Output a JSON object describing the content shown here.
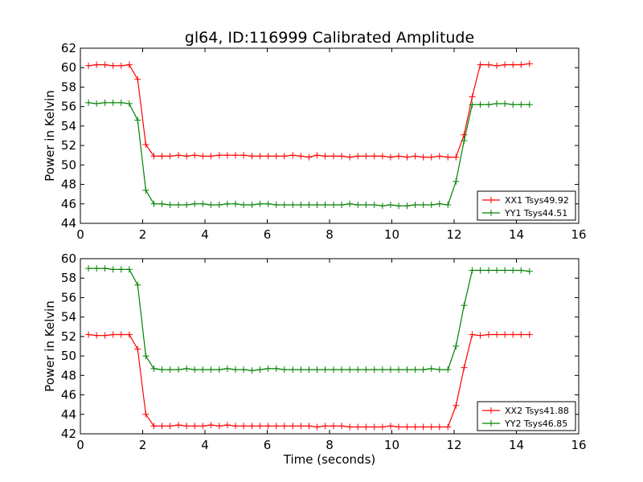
{
  "chart_data": [
    {
      "type": "line",
      "title": "gl64, ID:116999 Calibrated Amplitude",
      "xlabel": "",
      "ylabel": "Power in Kelvin",
      "xlim": [
        0,
        16
      ],
      "ylim": [
        44,
        62
      ],
      "xticks": [
        "0",
        "2",
        "4",
        "6",
        "8",
        "10",
        "12",
        "14",
        "16"
      ],
      "yticks": [
        "44",
        "46",
        "48",
        "50",
        "52",
        "54",
        "56",
        "58",
        "60",
        "62"
      ],
      "grid": false,
      "legend_position": "lower-right",
      "series": [
        {
          "name": "XX1 Tsys49.92",
          "color": "#ff0000",
          "x": [
            0.26,
            0.52,
            0.79,
            1.05,
            1.31,
            1.57,
            1.84,
            2.1,
            2.36,
            2.62,
            2.88,
            3.15,
            3.41,
            3.67,
            3.93,
            4.19,
            4.46,
            4.72,
            4.98,
            5.24,
            5.51,
            5.77,
            6.03,
            6.29,
            6.55,
            6.82,
            7.08,
            7.34,
            7.6,
            7.86,
            8.13,
            8.39,
            8.65,
            8.91,
            9.17,
            9.44,
            9.7,
            9.96,
            10.22,
            10.49,
            10.75,
            11.01,
            11.27,
            11.53,
            11.8,
            12.06,
            12.32,
            12.58,
            12.84,
            13.11,
            13.37,
            13.63,
            13.89,
            14.15,
            14.42
          ],
          "y": [
            60.2,
            60.3,
            60.3,
            60.2,
            60.2,
            60.3,
            58.8,
            52.1,
            50.9,
            50.9,
            50.9,
            51.0,
            50.9,
            51.0,
            50.9,
            50.9,
            51.0,
            51.0,
            51.0,
            51.0,
            50.9,
            50.9,
            50.9,
            50.9,
            50.9,
            51.0,
            50.9,
            50.8,
            51.0,
            50.9,
            50.9,
            50.9,
            50.8,
            50.9,
            50.9,
            50.9,
            50.9,
            50.8,
            50.9,
            50.8,
            50.9,
            50.8,
            50.8,
            50.9,
            50.8,
            50.8,
            53.1,
            57.0,
            60.3,
            60.3,
            60.2,
            60.3,
            60.3,
            60.3,
            60.4
          ]
        },
        {
          "name": "YY1 Tsys44.51",
          "color": "#008000",
          "x": [
            0.26,
            0.52,
            0.79,
            1.05,
            1.31,
            1.57,
            1.84,
            2.1,
            2.36,
            2.62,
            2.88,
            3.15,
            3.41,
            3.67,
            3.93,
            4.19,
            4.46,
            4.72,
            4.98,
            5.24,
            5.51,
            5.77,
            6.03,
            6.29,
            6.55,
            6.82,
            7.08,
            7.34,
            7.6,
            7.86,
            8.13,
            8.39,
            8.65,
            8.91,
            9.17,
            9.44,
            9.7,
            9.96,
            10.22,
            10.49,
            10.75,
            11.01,
            11.27,
            11.53,
            11.8,
            12.06,
            12.32,
            12.58,
            12.84,
            13.11,
            13.37,
            13.63,
            13.89,
            14.15,
            14.42
          ],
          "y": [
            56.4,
            56.3,
            56.4,
            56.4,
            56.4,
            56.3,
            54.6,
            47.4,
            46.0,
            46.0,
            45.9,
            45.9,
            45.9,
            46.0,
            46.0,
            45.9,
            45.9,
            46.0,
            46.0,
            45.9,
            45.9,
            46.0,
            46.0,
            45.9,
            45.9,
            45.9,
            45.9,
            45.9,
            45.9,
            45.9,
            45.9,
            45.9,
            46.0,
            45.9,
            45.9,
            45.9,
            45.8,
            45.9,
            45.8,
            45.8,
            45.9,
            45.9,
            45.9,
            46.0,
            45.9,
            48.3,
            52.5,
            56.2,
            56.2,
            56.2,
            56.3,
            56.3,
            56.2,
            56.2,
            56.2
          ]
        }
      ]
    },
    {
      "type": "line",
      "title": "",
      "xlabel": "Time (seconds)",
      "ylabel": "Power in Kelvin",
      "xlim": [
        0,
        16
      ],
      "ylim": [
        42,
        60
      ],
      "xticks": [
        "0",
        "2",
        "4",
        "6",
        "8",
        "10",
        "12",
        "14",
        "16"
      ],
      "yticks": [
        "42",
        "44",
        "46",
        "48",
        "50",
        "52",
        "54",
        "56",
        "58",
        "60"
      ],
      "grid": false,
      "legend_position": "lower-right",
      "series": [
        {
          "name": "XX2 Tsys41.88",
          "color": "#ff0000",
          "x": [
            0.26,
            0.52,
            0.79,
            1.05,
            1.31,
            1.57,
            1.84,
            2.1,
            2.36,
            2.62,
            2.88,
            3.15,
            3.41,
            3.67,
            3.93,
            4.19,
            4.46,
            4.72,
            4.98,
            5.24,
            5.51,
            5.77,
            6.03,
            6.29,
            6.55,
            6.82,
            7.08,
            7.34,
            7.6,
            7.86,
            8.13,
            8.39,
            8.65,
            8.91,
            9.17,
            9.44,
            9.7,
            9.96,
            10.22,
            10.49,
            10.75,
            11.01,
            11.27,
            11.53,
            11.8,
            12.06,
            12.32,
            12.58,
            12.84,
            13.11,
            13.37,
            13.63,
            13.89,
            14.15,
            14.42
          ],
          "y": [
            52.2,
            52.1,
            52.1,
            52.2,
            52.2,
            52.2,
            50.7,
            44.0,
            42.8,
            42.8,
            42.8,
            42.9,
            42.8,
            42.8,
            42.8,
            42.9,
            42.8,
            42.9,
            42.8,
            42.8,
            42.8,
            42.8,
            42.8,
            42.8,
            42.8,
            42.8,
            42.8,
            42.8,
            42.7,
            42.8,
            42.8,
            42.8,
            42.7,
            42.7,
            42.7,
            42.7,
            42.7,
            42.8,
            42.7,
            42.7,
            42.7,
            42.7,
            42.7,
            42.7,
            42.7,
            44.9,
            48.8,
            52.2,
            52.1,
            52.2,
            52.2,
            52.2,
            52.2,
            52.2,
            52.2
          ]
        },
        {
          "name": "YY2 Tsys46.85",
          "color": "#008000",
          "x": [
            0.26,
            0.52,
            0.79,
            1.05,
            1.31,
            1.57,
            1.84,
            2.1,
            2.36,
            2.62,
            2.88,
            3.15,
            3.41,
            3.67,
            3.93,
            4.19,
            4.46,
            4.72,
            4.98,
            5.24,
            5.51,
            5.77,
            6.03,
            6.29,
            6.55,
            6.82,
            7.08,
            7.34,
            7.6,
            7.86,
            8.13,
            8.39,
            8.65,
            8.91,
            9.17,
            9.44,
            9.7,
            9.96,
            10.22,
            10.49,
            10.75,
            11.01,
            11.27,
            11.53,
            11.8,
            12.06,
            12.32,
            12.58,
            12.84,
            13.11,
            13.37,
            13.63,
            13.89,
            14.15,
            14.42
          ],
          "y": [
            59.0,
            59.0,
            59.0,
            58.9,
            58.9,
            58.9,
            57.3,
            50.0,
            48.7,
            48.6,
            48.6,
            48.6,
            48.7,
            48.6,
            48.6,
            48.6,
            48.6,
            48.7,
            48.6,
            48.6,
            48.5,
            48.6,
            48.7,
            48.7,
            48.6,
            48.6,
            48.6,
            48.6,
            48.6,
            48.6,
            48.6,
            48.6,
            48.6,
            48.6,
            48.6,
            48.6,
            48.6,
            48.6,
            48.6,
            48.6,
            48.6,
            48.6,
            48.7,
            48.6,
            48.6,
            51.0,
            55.2,
            58.8,
            58.8,
            58.8,
            58.8,
            58.8,
            58.8,
            58.8,
            58.7
          ]
        }
      ]
    }
  ]
}
